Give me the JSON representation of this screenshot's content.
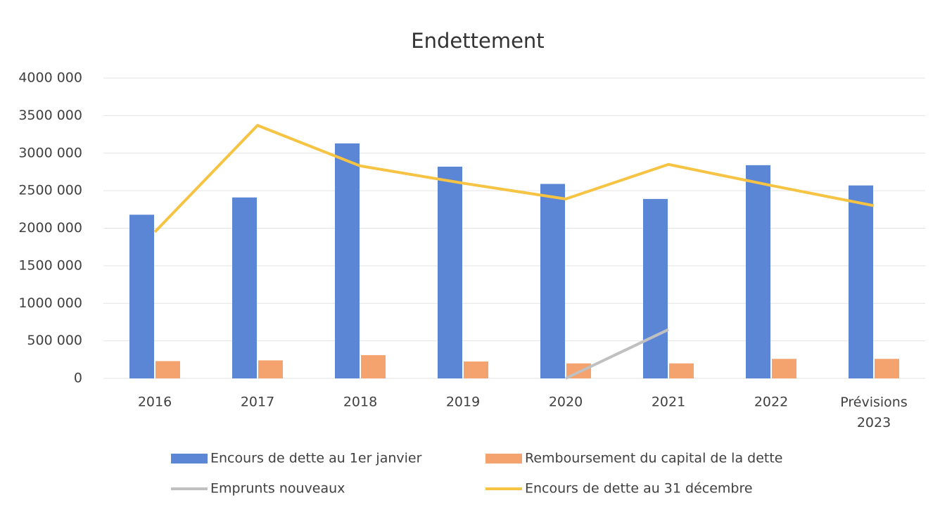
{
  "chart_data": {
    "type": "combo",
    "title": "Endettement",
    "categories": [
      "2016",
      "2017",
      "2018",
      "2019",
      "2020",
      "2021",
      "2022",
      "Prévisions 2023"
    ],
    "series": [
      {
        "name": "Encours de dette au 1er janvier",
        "type": "bar",
        "color": "#5b86d6",
        "values": [
          2180000,
          2410000,
          3130000,
          2820000,
          2590000,
          2390000,
          2840000,
          2570000
        ]
      },
      {
        "name": "Remboursement du capital de la dette",
        "type": "bar",
        "color": "#f4a26e",
        "values": [
          230000,
          240000,
          310000,
          225000,
          200000,
          200000,
          260000,
          260000
        ]
      },
      {
        "name": "Emprunts nouveaux",
        "type": "line",
        "color": "#c0c0c0",
        "values": [
          null,
          null,
          null,
          null,
          0,
          650000,
          null,
          null
        ]
      },
      {
        "name": "Encours de dette au 31 décembre",
        "type": "line",
        "color": "#f6c342",
        "values": [
          1950000,
          3370000,
          2830000,
          2600000,
          2390000,
          2850000,
          2570000,
          2300000
        ]
      }
    ],
    "ylim": [
      0,
      4000000
    ],
    "yticks": [
      0,
      {
        "value": 500000,
        "label": "500 000"
      },
      {
        "value": 1000000,
        "label": "1000 000"
      },
      {
        "value": 1500000,
        "label": "1500 000"
      },
      {
        "value": 2000000,
        "label": "2000 000"
      },
      {
        "value": 2500000,
        "label": "2500 000"
      },
      {
        "value": 3000000,
        "label": "3000 000"
      },
      {
        "value": 3500000,
        "label": "3500 000"
      },
      {
        "value": 4000000,
        "label": "4000 000"
      }
    ],
    "grid": true,
    "legend": "bottom"
  }
}
